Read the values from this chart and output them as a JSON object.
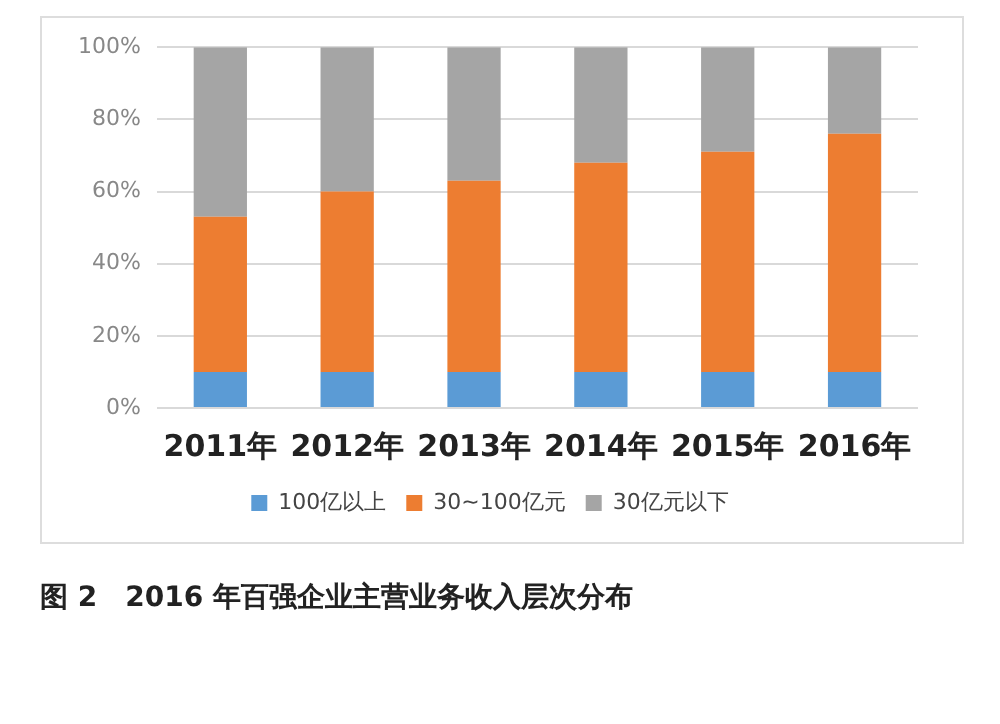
{
  "chart_data": {
    "type": "bar",
    "stacked": true,
    "categories": [
      "2011年",
      "2012年",
      "2013年",
      "2014年",
      "2015年",
      "2016年"
    ],
    "series": [
      {
        "name": "100亿以上",
        "color": "#5b9bd5",
        "values": [
          10,
          10,
          10,
          10,
          10,
          10
        ]
      },
      {
        "name": "30~100亿元",
        "color": "#ed7d31",
        "values": [
          43,
          50,
          53,
          58,
          61,
          66
        ]
      },
      {
        "name": "30亿元以下",
        "color": "#a5a5a5",
        "values": [
          47,
          40,
          37,
          32,
          29,
          24
        ]
      }
    ],
    "ylim": [
      0,
      100
    ],
    "yticks": [
      {
        "value": 0,
        "label": "0%"
      },
      {
        "value": 20,
        "label": "20%"
      },
      {
        "value": 40,
        "label": "40%"
      },
      {
        "value": 60,
        "label": "60%"
      },
      {
        "value": 80,
        "label": "80%"
      },
      {
        "value": 100,
        "label": "100%"
      }
    ],
    "grid": "y",
    "legend": "bottom",
    "annotations": [
      "图 2　2016 年百强企业主营业务收入层次分布"
    ]
  }
}
